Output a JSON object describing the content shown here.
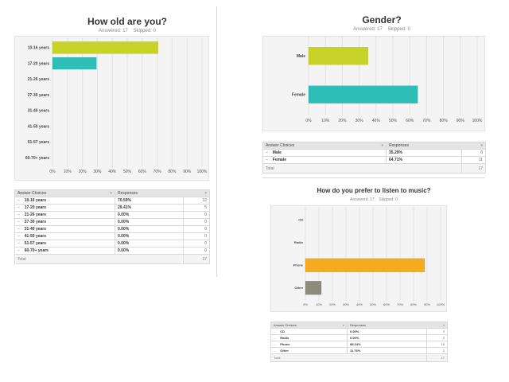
{
  "surveys": [
    {
      "title": "How old are you?",
      "answered_label": "Answered: 17",
      "skipped_label": "Skipped: 0",
      "colors": [
        "#c8d32a",
        "#2fbdb8"
      ],
      "header": {
        "choices": "Answer Choices",
        "responses": "Responses"
      },
      "rows": [
        {
          "label": "10-16 years",
          "percent": "70.59%",
          "count": "12"
        },
        {
          "label": "17-20 years",
          "percent": "29.41%",
          "count": "5"
        },
        {
          "label": "21-26 years",
          "percent": "0.00%",
          "count": "0"
        },
        {
          "label": "27-30 years",
          "percent": "0.00%",
          "count": "0"
        },
        {
          "label": "31-40 years",
          "percent": "0.00%",
          "count": "0"
        },
        {
          "label": "41-50 years",
          "percent": "0.00%",
          "count": "0"
        },
        {
          "label": "51-57 years",
          "percent": "0.00%",
          "count": "0"
        },
        {
          "label": "60-70+ years",
          "percent": "0.00%",
          "count": "0"
        }
      ],
      "total_label": "Total",
      "total": "17"
    },
    {
      "title": "Gender?",
      "answered_label": "Answered: 17",
      "skipped_label": "Skipped: 0",
      "colors": [
        "#c8d32a",
        "#2fbdb8"
      ],
      "header": {
        "choices": "Answer Choices",
        "responses": "Responses"
      },
      "rows": [
        {
          "label": "Male",
          "percent": "35.29%",
          "count": "6"
        },
        {
          "label": "Female",
          "percent": "64.71%",
          "count": "11"
        }
      ],
      "total_label": "Total",
      "total": "17"
    },
    {
      "title": "How do you prefer to listen to music?",
      "answered_label": "Answered: 17",
      "skipped_label": "Skipped: 0",
      "colors": [
        "#f4ac1e",
        "#8c8b7c"
      ],
      "header": {
        "choices": "Answer Choices",
        "responses": "Responses"
      },
      "rows": [
        {
          "label": "CD",
          "percent": "0.00%",
          "count": "0"
        },
        {
          "label": "Radio",
          "percent": "0.00%",
          "count": "0"
        },
        {
          "label": "Phone",
          "percent": "88.24%",
          "count": "15"
        },
        {
          "label": "Other",
          "percent": "11.76%",
          "count": "2"
        }
      ],
      "total_label": "Total",
      "total": "17"
    }
  ],
  "chart_data": [
    {
      "type": "bar",
      "orientation": "horizontal",
      "title": "How old are you?",
      "categories": [
        "10-16 years",
        "17-20 years",
        "21-26 years",
        "27-30 years",
        "31-40 years",
        "41-50 years",
        "51-57 years",
        "60-70+ years"
      ],
      "values": [
        70.59,
        29.41,
        0,
        0,
        0,
        0,
        0,
        0
      ],
      "xlim": [
        0,
        100
      ],
      "xticks": [
        "0%",
        "10%",
        "20%",
        "30%",
        "40%",
        "50%",
        "60%",
        "70%",
        "80%",
        "90%",
        "100%"
      ],
      "grid": true
    },
    {
      "type": "bar",
      "orientation": "horizontal",
      "title": "Gender?",
      "categories": [
        "Male",
        "Female"
      ],
      "values": [
        35.29,
        64.71
      ],
      "xlim": [
        0,
        100
      ],
      "xticks": [
        "0%",
        "10%",
        "20%",
        "30%",
        "40%",
        "50%",
        "60%",
        "70%",
        "80%",
        "90%",
        "100%"
      ],
      "grid": true
    },
    {
      "type": "bar",
      "orientation": "horizontal",
      "title": "How do you prefer to listen to music?",
      "categories": [
        "CD",
        "Radio",
        "Phone",
        "Other"
      ],
      "values": [
        0,
        0,
        88.24,
        11.76
      ],
      "xlim": [
        0,
        100
      ],
      "xticks": [
        "0%",
        "10%",
        "20%",
        "30%",
        "40%",
        "50%",
        "60%",
        "70%",
        "80%",
        "90%",
        "100%"
      ],
      "grid": true
    }
  ]
}
